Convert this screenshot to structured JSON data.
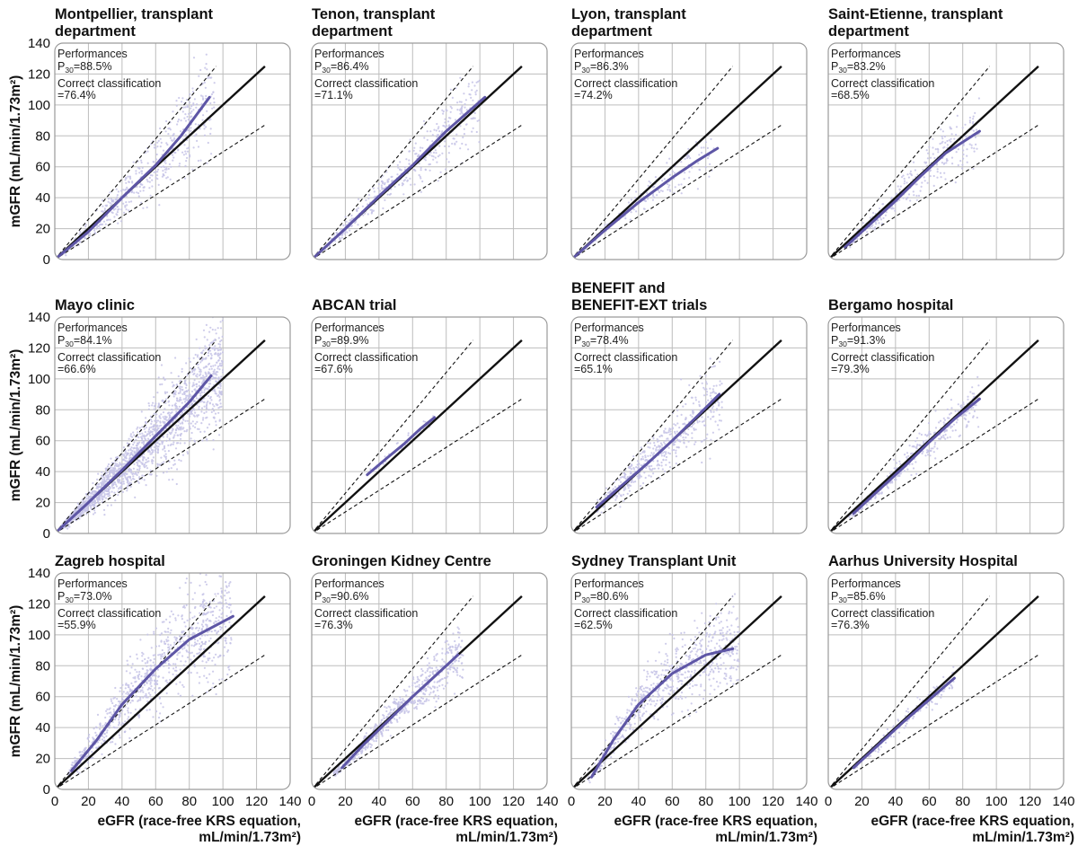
{
  "chart_data": [
    {
      "type": "scatter",
      "title": [
        "Montpellier, transplant",
        "department"
      ],
      "performances_label": "Performances",
      "p30_label": "P",
      "p30_sub": "30",
      "p30_value": "=88.5%",
      "cc_label": "Correct classification",
      "cc_value": "=76.4%",
      "curve": [
        [
          0,
          0
        ],
        [
          20,
          18
        ],
        [
          40,
          40
        ],
        [
          60,
          61
        ],
        [
          75,
          80
        ],
        [
          92,
          105
        ]
      ],
      "cloud": {
        "x": [
          5,
          95
        ],
        "spread": 0.28,
        "n": 500
      }
    },
    {
      "type": "scatter",
      "title": [
        "Tenon, transplant",
        "department"
      ],
      "performances_label": "Performances",
      "p30_label": "P",
      "p30_sub": "30",
      "p30_value": "=86.4%",
      "cc_label": "Correct classification",
      "cc_value": "=71.1%",
      "curve": [
        [
          0,
          0
        ],
        [
          20,
          20
        ],
        [
          40,
          41
        ],
        [
          60,
          61
        ],
        [
          80,
          83
        ],
        [
          103,
          105
        ]
      ],
      "cloud": {
        "x": [
          8,
          100
        ],
        "spread": 0.22,
        "n": 400
      }
    },
    {
      "type": "scatter",
      "title": [
        "Lyon, transplant",
        "department"
      ],
      "performances_label": "Performances",
      "p30_label": "P",
      "p30_sub": "30",
      "p30_value": "=86.3%",
      "cc_label": "Correct classification",
      "cc_value": "=74.2%",
      "curve": [
        [
          0,
          0
        ],
        [
          20,
          19
        ],
        [
          40,
          37
        ],
        [
          60,
          53
        ],
        [
          75,
          64
        ],
        [
          87,
          72
        ]
      ],
      "cloud": {
        "x": [
          5,
          85
        ],
        "spread": 0.2,
        "n": 150
      }
    },
    {
      "type": "scatter",
      "title": [
        "Saint-Etienne, transplant",
        "department"
      ],
      "performances_label": "Performances",
      "p30_label": "P",
      "p30_sub": "30",
      "p30_value": "=83.2%",
      "cc_label": "Correct classification",
      "cc_value": "=68.5%",
      "curve": [
        [
          10,
          8
        ],
        [
          25,
          23
        ],
        [
          40,
          38
        ],
        [
          55,
          54
        ],
        [
          70,
          69
        ],
        [
          90,
          83
        ]
      ],
      "cloud": {
        "x": [
          10,
          90
        ],
        "spread": 0.22,
        "n": 300
      }
    },
    {
      "type": "scatter",
      "title": [
        "Mayo clinic"
      ],
      "performances_label": "Performances",
      "p30_label": "P",
      "p30_sub": "30",
      "p30_value": "=84.1%",
      "cc_label": "Correct classification",
      "cc_value": "=66.6%",
      "curve": [
        [
          0,
          0
        ],
        [
          20,
          20
        ],
        [
          40,
          41
        ],
        [
          60,
          63
        ],
        [
          80,
          85
        ],
        [
          93,
          102
        ]
      ],
      "cloud": {
        "x": [
          3,
          100
        ],
        "spread": 0.32,
        "n": 1800
      }
    },
    {
      "type": "scatter",
      "title": [
        "ABCAN trial"
      ],
      "performances_label": "Performances",
      "p30_label": "P",
      "p30_sub": "30",
      "p30_value": "=89.9%",
      "cc_label": "Correct classification",
      "cc_value": "=67.6%",
      "curve": [
        [
          33,
          38
        ],
        [
          45,
          49
        ],
        [
          55,
          58
        ],
        [
          65,
          68
        ],
        [
          73,
          75
        ]
      ],
      "cloud": {
        "x": [
          33,
          73
        ],
        "spread": 0.06,
        "n": 40
      }
    },
    {
      "type": "scatter",
      "title": [
        "BENEFIT and",
        "BENEFIT-EXT trials"
      ],
      "performances_label": "Performances",
      "p30_label": "P",
      "p30_sub": "30",
      "p30_value": "=78.4%",
      "cc_label": "Correct classification",
      "cc_value": "=65.1%",
      "curve": [
        [
          15,
          17
        ],
        [
          30,
          31
        ],
        [
          45,
          45
        ],
        [
          60,
          60
        ],
        [
          75,
          76
        ],
        [
          88,
          90
        ]
      ],
      "cloud": {
        "x": [
          15,
          90
        ],
        "spread": 0.25,
        "n": 500
      }
    },
    {
      "type": "scatter",
      "title": [
        "Bergamo hospital"
      ],
      "performances_label": "Performances",
      "p30_label": "P",
      "p30_sub": "30",
      "p30_value": "=91.3%",
      "cc_label": "Correct classification",
      "cc_value": "=79.3%",
      "curve": [
        [
          15,
          13
        ],
        [
          30,
          28
        ],
        [
          45,
          43
        ],
        [
          60,
          59
        ],
        [
          75,
          74
        ],
        [
          90,
          87
        ]
      ],
      "cloud": {
        "x": [
          12,
          90
        ],
        "spread": 0.16,
        "n": 350
      }
    },
    {
      "type": "scatter",
      "title": [
        "Zagreb hospital"
      ],
      "performances_label": "Performances",
      "p30_label": "P",
      "p30_sub": "30",
      "p30_value": "=73.0%",
      "cc_label": "Correct classification",
      "cc_value": "=55.9%",
      "curve": [
        [
          10,
          12
        ],
        [
          25,
          32
        ],
        [
          40,
          55
        ],
        [
          60,
          78
        ],
        [
          80,
          97
        ],
        [
          106,
          112
        ]
      ],
      "cloud": {
        "x": [
          8,
          105
        ],
        "spread": 0.3,
        "n": 900
      }
    },
    {
      "type": "scatter",
      "title": [
        "Groningen Kidney Centre"
      ],
      "performances_label": "Performances",
      "p30_label": "P",
      "p30_sub": "30",
      "p30_value": "=90.6%",
      "cc_label": "Correct classification",
      "cc_value": "=76.3%",
      "curve": [
        [
          18,
          14
        ],
        [
          30,
          28
        ],
        [
          45,
          44
        ],
        [
          60,
          60
        ],
        [
          75,
          75
        ],
        [
          87,
          87
        ]
      ],
      "cloud": {
        "x": [
          12,
          90
        ],
        "spread": 0.17,
        "n": 600
      }
    },
    {
      "type": "scatter",
      "title": [
        "Sydney Transplant Unit"
      ],
      "performances_label": "Performances",
      "p30_label": "P",
      "p30_sub": "30",
      "p30_value": "=80.6%",
      "cc_label": "Correct classification",
      "cc_value": "=62.5%",
      "curve": [
        [
          12,
          8
        ],
        [
          25,
          32
        ],
        [
          40,
          55
        ],
        [
          60,
          75
        ],
        [
          80,
          87
        ],
        [
          96,
          91
        ]
      ],
      "cloud": {
        "x": [
          10,
          100
        ],
        "spread": 0.27,
        "n": 700
      }
    },
    {
      "type": "scatter",
      "title": [
        "Aarhus University Hospital"
      ],
      "performances_label": "Performances",
      "p30_label": "P",
      "p30_sub": "30",
      "p30_value": "=85.6%",
      "cc_label": "Correct classification",
      "cc_value": "=76.3%",
      "curve": [
        [
          15,
          14
        ],
        [
          30,
          29
        ],
        [
          45,
          44
        ],
        [
          60,
          58
        ],
        [
          75,
          72
        ]
      ],
      "cloud": {
        "x": [
          15,
          75
        ],
        "spread": 0.1,
        "n": 150
      }
    }
  ],
  "axes": {
    "ylabel": "mGFR (mL/min/1.73m²)",
    "xlabel_line1": "eGFR (race-free KRS equation,",
    "xlabel_line2": "mL/min/1.73m²)",
    "xlim": [
      0,
      140
    ],
    "ylim": [
      0,
      140
    ],
    "ticks": [
      "0",
      "20",
      "40",
      "60",
      "80",
      "100",
      "120",
      "140"
    ]
  },
  "colors": {
    "curve": "#5e56a6",
    "points": "#c6c3e6",
    "identity": "#111111",
    "bounds": "#111111",
    "grid": "#bdbdbd",
    "frame": "#9a9a9a"
  }
}
